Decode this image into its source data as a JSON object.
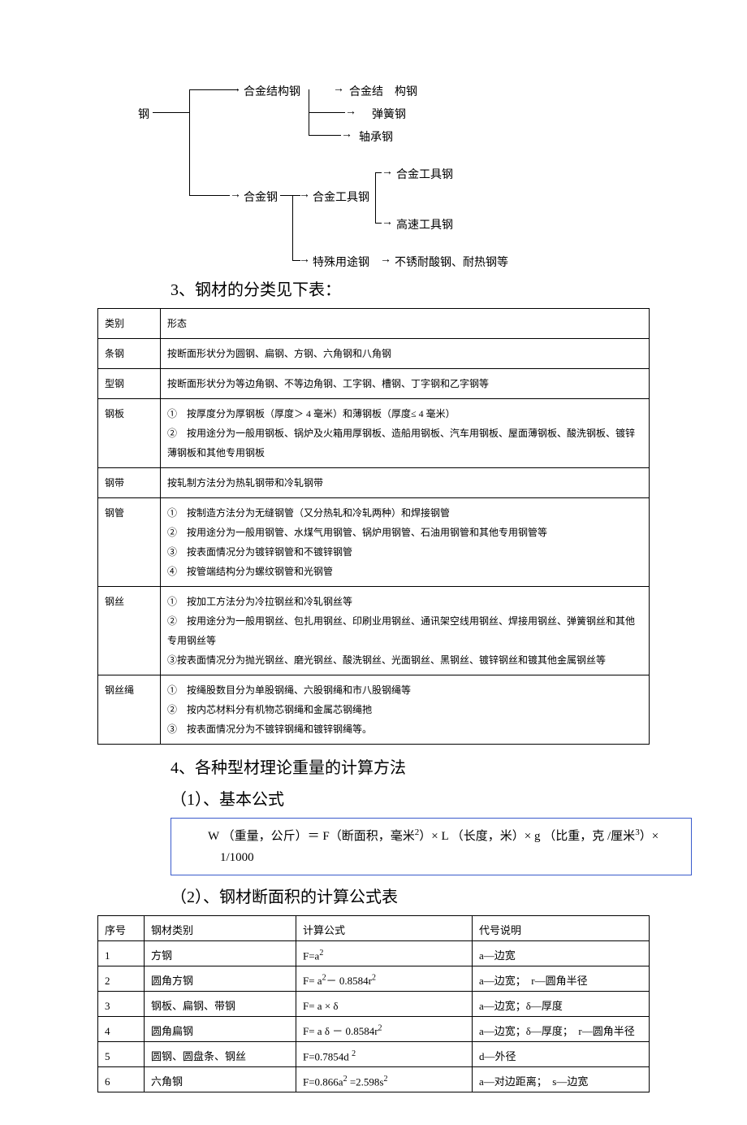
{
  "tree": {
    "root": "钢",
    "n_hejinjiegou": "合金结构钢",
    "n_hejinjie_gou": "合金结　构钢",
    "n_tanhuang": "弹簧钢",
    "n_zhoucheng": "轴承钢",
    "n_hejingang": "合金钢",
    "n_hejingongju": "合金工具钢",
    "n_hejingongju2": "合金工具钢",
    "n_gaosu": "高速工具钢",
    "n_teshu": "特殊用途钢",
    "n_buxiu": "不锈耐酸钢、耐热钢等"
  },
  "heading3": "3、钢材的分类见下表：",
  "table1": {
    "header_cat": "类别",
    "header_form": "形态",
    "rows": [
      {
        "cat": "条钢",
        "lines": [
          "按断面形状分为圆钢、扁钢、方钢、六角钢和八角钢"
        ]
      },
      {
        "cat": "型钢",
        "lines": [
          "按断面形状分为等边角钢、不等边角钢、工字钢、槽钢、丁字钢和乙字钢等"
        ]
      },
      {
        "cat": "钢板",
        "lines": [
          "①　按厚度分为厚钢板（厚度＞ 4 毫米）和薄钢板（厚度≤ 4 毫米）",
          "②　按用途分为一般用钢板、锅炉及火箱用厚钢板、造船用钢板、汽车用钢板、屋面薄钢板、酸洗钢板、镀锌薄钢板和其他专用钢板"
        ]
      },
      {
        "cat": "钢带",
        "lines": [
          "按轧制方法分为热轧钢带和冷轧钢带"
        ]
      },
      {
        "cat": "钢管",
        "lines": [
          "①　按制造方法分为无缝钢管（又分热轧和冷轧两种）和焊接钢管",
          "②　按用途分为一般用钢管、水煤气用钢管、锅炉用钢管、石油用钢管和其他专用钢管等",
          "③　按表面情况分为镀锌钢管和不镀锌钢管",
          "④　按管端结构分为螺纹钢管和光钢管"
        ]
      },
      {
        "cat": "钢丝",
        "lines": [
          "①　按加工方法分为冷拉钢丝和冷轧钢丝等",
          "②　按用途分为一般用钢丝、包扎用钢丝、印刷业用钢丝、通讯架空线用钢丝、焊接用钢丝、弹簧钢丝和其他专用钢丝等",
          "③按表面情况分为抛光钢丝、磨光钢丝、酸洗钢丝、光面钢丝、黑钢丝、镀锌钢丝和镀其他金属钢丝等"
        ]
      },
      {
        "cat": "钢丝绳",
        "lines": [
          "①　按绳股数目分为单股钢绳、六股钢绳和市八股钢绳等",
          "②　按内芯材料分有机物芯钢绳和金属芯钢绳扡",
          "③　按表面情况分为不镀锌钢绳和镀锌钢绳等。"
        ]
      }
    ]
  },
  "heading4": "4、各种型材理论重量的计算方法",
  "sub1": "（1）、基本公式",
  "formula": {
    "line1_a": "W （重量，公斤）＝ F（断面积，毫米",
    "line1_sup": "2",
    "line1_b": "）× L （长度，米）× g",
    "line2_a": "（比重，克 /厘米",
    "line2_sup": "3",
    "line2_b": "）× 1/1000"
  },
  "sub2": "（2）、钢材断面积的计算公式表",
  "table2": {
    "headers": [
      "序号",
      "钢材类别",
      "计算公式",
      "代号说明"
    ],
    "rows": [
      {
        "n": "1",
        "cat": "方钢",
        "formula_html": "F=a<sup>2</sup>",
        "desc": "a—边宽"
      },
      {
        "n": "2",
        "cat": "圆角方钢",
        "formula_html": "F= a<sup>2</sup>－ 0.8584r<sup>2</sup>",
        "desc": "a—边宽；　r—圆角半径"
      },
      {
        "n": "3",
        "cat": "钢板、扁钢、带钢",
        "formula_html": "F= a × δ",
        "desc": "a—边宽；δ—厚度"
      },
      {
        "n": "4",
        "cat": "圆角扁钢",
        "formula_html": "F= a δ － 0.8584r<sup>2</sup>",
        "desc": "a—边宽；δ—厚度；　r—圆角半径"
      },
      {
        "n": "5",
        "cat": "圆钢、圆盘条、钢丝",
        "formula_html": "F=0.7854d <sup>2</sup>",
        "desc": "d—外径"
      },
      {
        "n": "6",
        "cat": "六角钢",
        "formula_html": "F=0.866a<sup>2</sup> =2.598s<sup>2</sup>",
        "desc": "a—对边距离；　s—边宽"
      }
    ]
  }
}
